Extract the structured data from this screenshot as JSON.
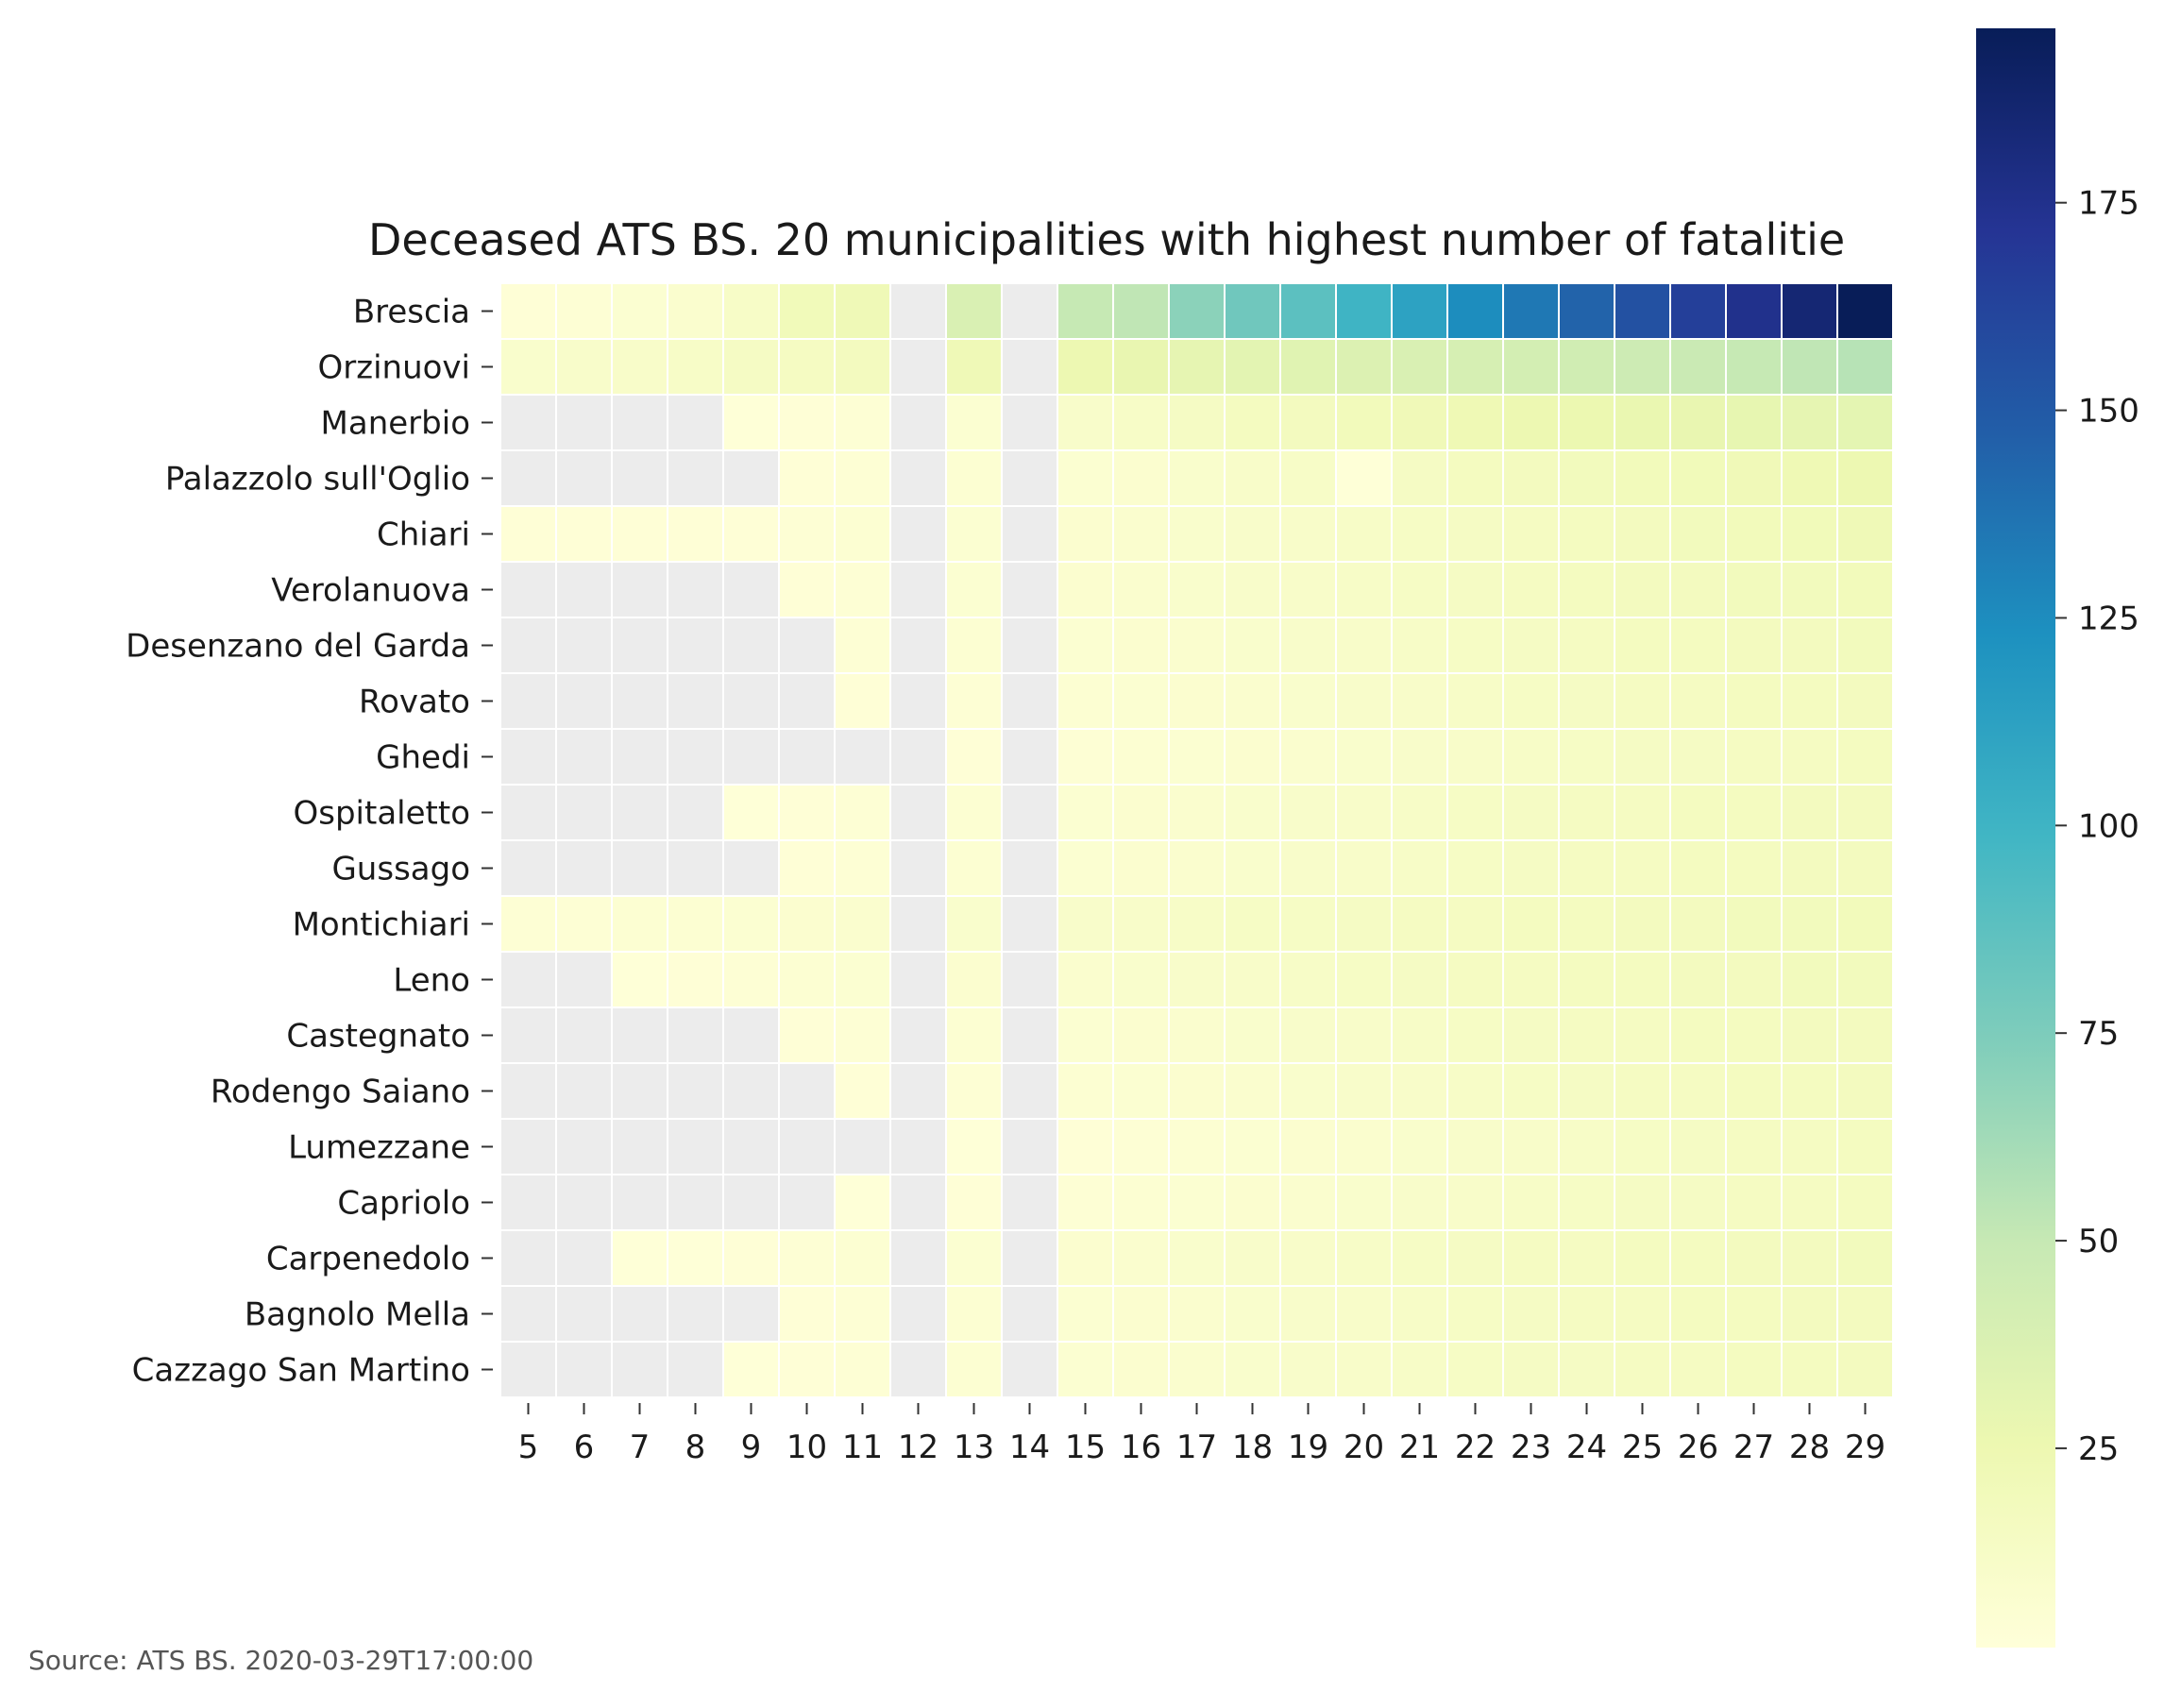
{
  "chart_data": {
    "type": "heatmap",
    "title": "Deceased ATS BS. 20 municipalities with highest number of fatalitie",
    "x_categories": [
      "5",
      "6",
      "7",
      "8",
      "9",
      "10",
      "11",
      "12",
      "13",
      "14",
      "15",
      "16",
      "17",
      "18",
      "19",
      "20",
      "21",
      "22",
      "23",
      "24",
      "25",
      "26",
      "27",
      "28",
      "29"
    ],
    "y_categories": [
      "Brescia",
      "Orzinuovi",
      "Manerbio",
      "Palazzolo sull'Oglio",
      "Chiari",
      "Verolanuova",
      "Desenzano del Garda",
      "Rovato",
      "Ghedi",
      "Ospitaletto",
      "Gussago",
      "Montichiari",
      "Leno",
      "Castegnato",
      "Rodengo Saiano",
      "Lumezzane",
      "Capriolo",
      "Carpenedolo",
      "Bagnolo Mella",
      "Cazzago San Martino"
    ],
    "values": [
      [
        3,
        4,
        6,
        8,
        12,
        20,
        22,
        null,
        38,
        null,
        50,
        52,
        70,
        80,
        88,
        100,
        112,
        125,
        135,
        145,
        155,
        165,
        175,
        185,
        196
      ],
      [
        9,
        10,
        11,
        12,
        14,
        15,
        17,
        null,
        22,
        null,
        25,
        28,
        30,
        32,
        34,
        36,
        38,
        40,
        42,
        44,
        46,
        48,
        50,
        52,
        55
      ],
      [
        null,
        null,
        null,
        null,
        2,
        3,
        4,
        null,
        6,
        null,
        10,
        12,
        14,
        16,
        17,
        19,
        21,
        23,
        25,
        26,
        27,
        28,
        29,
        30,
        31
      ],
      [
        null,
        null,
        null,
        null,
        null,
        3,
        4,
        null,
        5,
        null,
        6,
        7,
        9,
        11,
        12,
        2,
        14,
        16,
        17,
        18,
        19,
        20,
        21,
        23,
        25
      ],
      [
        3,
        3,
        3,
        3,
        3,
        4,
        5,
        null,
        6,
        null,
        7,
        8,
        9,
        10,
        11,
        12,
        13,
        14,
        15,
        16,
        17,
        18,
        19,
        20,
        22
      ],
      [
        null,
        null,
        null,
        null,
        null,
        3,
        4,
        null,
        6,
        null,
        7,
        8,
        9,
        10,
        11,
        12,
        13,
        14,
        15,
        16,
        17,
        17,
        18,
        18,
        19
      ],
      [
        null,
        null,
        null,
        null,
        null,
        null,
        4,
        null,
        5,
        null,
        6,
        7,
        8,
        9,
        10,
        11,
        12,
        13,
        14,
        15,
        16,
        16,
        17,
        17,
        18
      ],
      [
        null,
        null,
        null,
        null,
        null,
        null,
        3,
        null,
        4,
        null,
        5,
        6,
        7,
        8,
        9,
        10,
        11,
        12,
        13,
        14,
        15,
        15,
        16,
        16,
        17
      ],
      [
        null,
        null,
        null,
        null,
        null,
        null,
        null,
        null,
        3,
        null,
        4,
        5,
        6,
        7,
        8,
        9,
        10,
        11,
        12,
        13,
        14,
        14,
        15,
        15,
        16
      ],
      [
        null,
        null,
        null,
        null,
        2,
        3,
        4,
        null,
        5,
        null,
        6,
        7,
        8,
        9,
        10,
        11,
        12,
        13,
        14,
        15,
        15,
        16,
        16,
        17,
        17
      ],
      [
        null,
        null,
        null,
        null,
        null,
        3,
        4,
        null,
        5,
        null,
        6,
        7,
        8,
        9,
        10,
        11,
        12,
        13,
        14,
        15,
        15,
        16,
        16,
        17,
        17
      ],
      [
        4,
        4,
        5,
        5,
        6,
        7,
        8,
        null,
        9,
        null,
        10,
        11,
        12,
        13,
        13,
        14,
        15,
        15,
        16,
        16,
        17,
        17,
        18,
        18,
        19
      ],
      [
        null,
        null,
        2,
        3,
        4,
        5,
        6,
        null,
        7,
        null,
        8,
        9,
        10,
        11,
        12,
        13,
        14,
        15,
        15,
        16,
        16,
        17,
        17,
        18,
        18
      ],
      [
        null,
        null,
        null,
        null,
        null,
        3,
        4,
        null,
        5,
        null,
        6,
        7,
        8,
        9,
        10,
        11,
        12,
        13,
        14,
        15,
        15,
        16,
        16,
        17,
        17
      ],
      [
        null,
        null,
        null,
        null,
        null,
        null,
        3,
        null,
        4,
        null,
        5,
        6,
        7,
        8,
        9,
        10,
        11,
        12,
        13,
        14,
        15,
        15,
        16,
        16,
        17
      ],
      [
        null,
        null,
        null,
        null,
        null,
        null,
        null,
        null,
        2,
        null,
        3,
        4,
        5,
        6,
        7,
        8,
        9,
        10,
        11,
        12,
        13,
        14,
        15,
        15,
        16
      ],
      [
        null,
        null,
        null,
        null,
        null,
        null,
        2,
        null,
        3,
        null,
        4,
        5,
        6,
        7,
        8,
        9,
        10,
        11,
        12,
        13,
        14,
        14,
        15,
        15,
        16
      ],
      [
        null,
        null,
        2,
        2,
        3,
        4,
        5,
        null,
        6,
        null,
        7,
        8,
        9,
        10,
        11,
        12,
        13,
        14,
        15,
        15,
        16,
        16,
        17,
        17,
        18
      ],
      [
        null,
        null,
        null,
        null,
        null,
        3,
        4,
        null,
        5,
        null,
        6,
        7,
        8,
        9,
        10,
        11,
        12,
        13,
        14,
        15,
        15,
        16,
        16,
        17,
        17
      ],
      [
        null,
        null,
        null,
        null,
        2,
        3,
        4,
        null,
        5,
        null,
        6,
        7,
        8,
        9,
        10,
        11,
        12,
        13,
        14,
        14,
        15,
        15,
        16,
        16,
        17
      ]
    ],
    "missing_color": "#ececec",
    "colormap": "YlGnBu",
    "colorbar": {
      "min": 1,
      "max": 196,
      "ticks": [
        25,
        50,
        75,
        100,
        125,
        150,
        175
      ]
    },
    "grid": false,
    "legend": "colorbar-right"
  },
  "footer": {
    "source": "Source: ATS BS. 2020-03-29T17:00:00"
  }
}
